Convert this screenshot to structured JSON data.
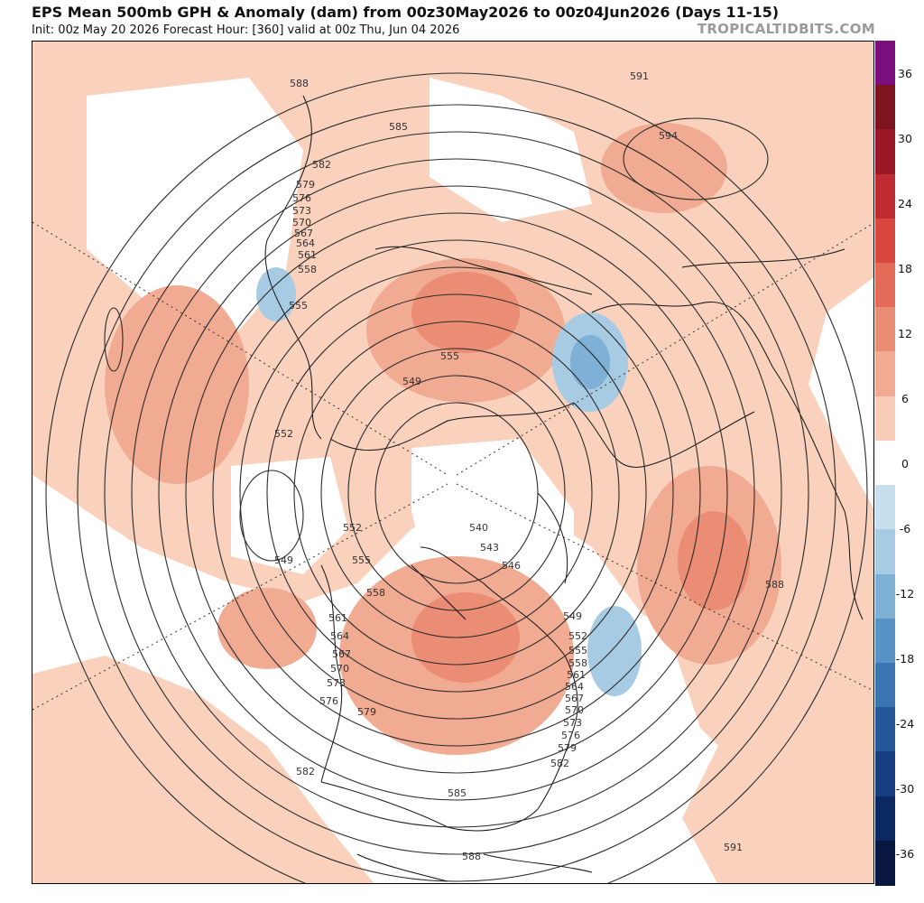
{
  "header": {
    "title": "EPS Mean 500mb GPH & Anomaly (dam) from 00z30May2026 to 00z04Jun2026 (Days 11-15)",
    "subtitle": "Init: 00z May 20 2026   Forecast Hour: [360]   valid at 00z Thu, Jun 04 2026",
    "brand": "TROPICALTIDBITS.COM"
  },
  "colorbar": {
    "ticks": [
      "36",
      "30",
      "24",
      "18",
      "12",
      "6",
      "0",
      "-6",
      "-12",
      "-18",
      "-24",
      "-30",
      "-36"
    ],
    "colors": [
      "#7b0f7f",
      "#7d1420",
      "#9c1828",
      "#bf2a33",
      "#d8473f",
      "#e36a57",
      "#eb8c74",
      "#f1ab92",
      "#f8ccb6",
      "#ffffff",
      "#c8dfee",
      "#a7cbe3",
      "#7fb0d6",
      "#5993c5",
      "#3c76b2",
      "#24589b",
      "#163d80",
      "#0c2860",
      "#08173f"
    ]
  },
  "contour_labels": [
    "588",
    "585",
    "582",
    "579",
    "576",
    "573",
    "570",
    "567",
    "564",
    "561",
    "558",
    "555",
    "552",
    "549",
    "546",
    "543",
    "540",
    "591",
    "594"
  ],
  "map": {
    "description_icons": [
      "polar-map",
      "contour-lines",
      "anomaly-shading"
    ]
  }
}
